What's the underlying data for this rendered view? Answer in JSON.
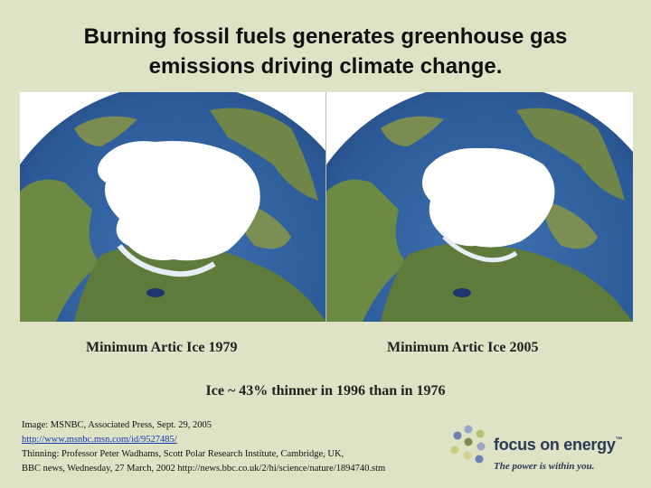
{
  "title": {
    "line1": "Burning fossil fuels generates greenhouse gas",
    "line2": "emissions driving climate change."
  },
  "captions": {
    "left": "Minimum Artic Ice 1979",
    "right": "Minimum Artic Ice 2005"
  },
  "summary": "Ice ~ 43% thinner in 1996 than in 1976",
  "credits": {
    "line1": "Image:  MSNBC, Associated Press, Sept. 29, 2005",
    "link": "http://www.msnbc.msn.com/id/9527485/",
    "line3": "Thinning: Professor Peter Wadhams, Scott Polar Research Institute, Cambridge, UK,",
    "line4": "BBC news, Wednesday, 27 March, 2002 http://news.bbc.co.uk/2/hi/science/nature/1894740.stm"
  },
  "logo": {
    "name": "focus on energy",
    "tm": "™",
    "tagline": "The power is within you."
  },
  "colors": {
    "background": "#dde3c4",
    "ocean": "#2c5a98",
    "land": "#6d8a45",
    "ice": "#ffffff"
  }
}
